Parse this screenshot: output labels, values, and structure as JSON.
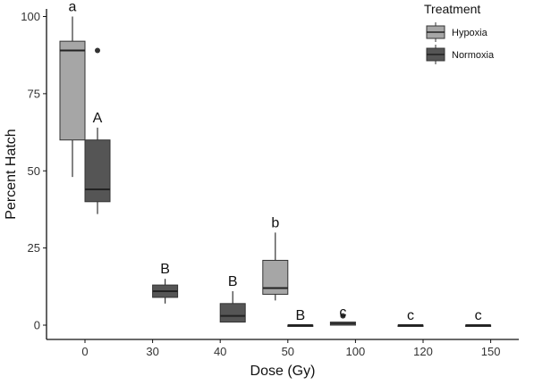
{
  "chart_data": {
    "type": "boxplot",
    "xlabel": "Dose (Gy)",
    "ylabel": "Percent Hatch",
    "categories": [
      "0",
      "30",
      "40",
      "50",
      "100",
      "120",
      "150"
    ],
    "ylim": [
      0,
      100
    ],
    "yticks": [
      "0",
      "25",
      "50",
      "75",
      "100"
    ],
    "grid": false,
    "legend": {
      "title": "Treatment",
      "position": "top-right",
      "entries": [
        "Hypoxia",
        "Normoxia"
      ]
    },
    "series": [
      {
        "name": "Hypoxia",
        "color": "#a6a6a6",
        "boxes": [
          {
            "category": "0",
            "min": 48,
            "q1": 60,
            "median": 89,
            "q3": 92,
            "max": 100,
            "outliers": [],
            "label": "a"
          },
          {
            "category": "50",
            "min": 8,
            "q1": 10,
            "median": 12,
            "q3": 21,
            "max": 30,
            "outliers": [],
            "label": "b"
          },
          {
            "category": "100",
            "min": 0,
            "q1": 0,
            "median": 0.5,
            "q3": 1,
            "max": 1,
            "outliers": [
              3
            ],
            "label": "c"
          },
          {
            "category": "120",
            "min": 0,
            "q1": 0,
            "median": 0,
            "q3": 0,
            "max": 0,
            "outliers": [],
            "label": "c"
          },
          {
            "category": "150",
            "min": 0,
            "q1": 0,
            "median": 0,
            "q3": 0,
            "max": 0,
            "outliers": [],
            "label": "c"
          }
        ]
      },
      {
        "name": "Normoxia",
        "color": "#555555",
        "boxes": [
          {
            "category": "0",
            "min": 36,
            "q1": 40,
            "median": 44,
            "q3": 60,
            "max": 64,
            "outliers": [
              89
            ],
            "label": "A"
          },
          {
            "category": "30",
            "min": 7,
            "q1": 9,
            "median": 11,
            "q3": 13,
            "max": 15,
            "outliers": [],
            "label": "B"
          },
          {
            "category": "40",
            "min": 1,
            "q1": 1,
            "median": 3,
            "q3": 7,
            "max": 11,
            "outliers": [],
            "label": "B"
          },
          {
            "category": "50",
            "min": 0,
            "q1": 0,
            "median": 0,
            "q3": 0,
            "max": 0,
            "outliers": [],
            "label": "B"
          }
        ]
      }
    ]
  }
}
